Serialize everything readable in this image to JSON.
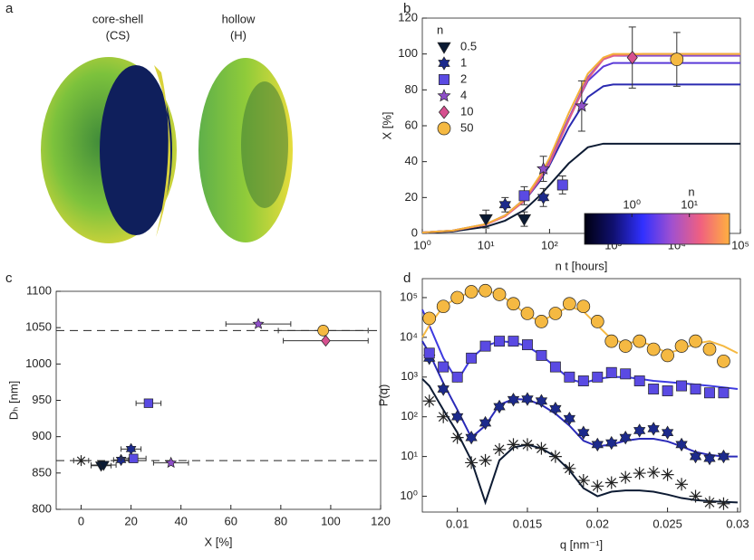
{
  "panel_a": {
    "label": "a",
    "images": [
      {
        "title": "core-shell",
        "abbr": "(CS)"
      },
      {
        "title": "hollow",
        "abbr": "(H)"
      }
    ]
  },
  "chart_data": [
    {
      "type": "scatter",
      "label": "b",
      "xlabel": "n t [hours]",
      "ylabel": "X [%]",
      "xscale": "log",
      "xlim": [
        1,
        100000
      ],
      "xticks": [
        {
          "value": 1,
          "label": "10⁰"
        },
        {
          "value": 10,
          "label": "10¹"
        },
        {
          "value": 100,
          "label": "10²"
        },
        {
          "value": 1000,
          "label": "10³"
        },
        {
          "value": 10000,
          "label": "10⁴"
        },
        {
          "value": 100000,
          "label": "10⁵"
        }
      ],
      "ylim": [
        0,
        120
      ],
      "yticks": [
        0,
        20,
        40,
        60,
        80,
        100,
        120
      ],
      "legend_title": "n",
      "legend_loc": "upper left",
      "curve_x": [
        1,
        3,
        10,
        20,
        40,
        70,
        100,
        200,
        400,
        700,
        1000,
        3000,
        10000,
        100000
      ],
      "series": [
        {
          "name": "0.5",
          "marker": "triangle-down",
          "color": "#0b1a33",
          "line_color": "#0d1b33",
          "x": [
            10,
            40
          ],
          "values": [
            8,
            8
          ],
          "errors": [
            5,
            4
          ],
          "curve": [
            0.4,
            1.1,
            3.7,
            7.1,
            13,
            21,
            27,
            39,
            48,
            50,
            50,
            50,
            50,
            50
          ]
        },
        {
          "name": "1",
          "marker": "hexagram",
          "color": "#1c2a8c",
          "line_color": "#2a2ab0",
          "x": [
            20,
            80
          ],
          "values": [
            16,
            20
          ],
          "errors": [
            4,
            5
          ],
          "curve": [
            0.5,
            1.5,
            5,
            10,
            18,
            29,
            38,
            59,
            76,
            82,
            83,
            83,
            83,
            83
          ]
        },
        {
          "name": "2",
          "marker": "square",
          "color": "#5a4ae3",
          "line_color": "#5a3ad8",
          "x": [
            40,
            160
          ],
          "values": [
            21,
            27
          ],
          "errors": [
            5,
            5
          ],
          "curve": [
            0.5,
            1.6,
            5.1,
            10,
            19,
            31,
            41,
            64,
            85,
            93,
            95,
            95,
            95,
            95
          ]
        },
        {
          "name": "4",
          "marker": "star",
          "color": "#8e4fc8",
          "line_color": "#8a4fc8",
          "x": [
            80,
            320
          ],
          "values": [
            36,
            71
          ],
          "errors": [
            7,
            14
          ],
          "curve": [
            0.5,
            1.6,
            5.1,
            10,
            19,
            31,
            40,
            64,
            87,
            97,
            99,
            99,
            99,
            99
          ]
        },
        {
          "name": "10",
          "marker": "diamond",
          "color": "#d6508f",
          "line_color": "#e05f8a",
          "x": [
            2000
          ],
          "values": [
            98
          ],
          "errors": [
            17
          ],
          "curve": [
            0.5,
            1.5,
            4.9,
            9.5,
            18,
            30,
            39,
            63,
            86,
            97,
            99,
            100,
            100,
            100
          ]
        },
        {
          "name": "50",
          "marker": "circle",
          "color": "#f5b942",
          "line_color": "#f5b038",
          "x": [
            10000
          ],
          "values": [
            97
          ],
          "errors": [
            15
          ],
          "curve": [
            0.5,
            1.6,
            5.2,
            10,
            19,
            32,
            42,
            67,
            89,
            98,
            100,
            100,
            100,
            100
          ]
        }
      ],
      "colorbar": {
        "title": "n",
        "lim": [
          0.15,
          50
        ],
        "ticks": [
          {
            "value": 1,
            "label": "10⁰"
          },
          {
            "value": 10,
            "label": "10¹"
          }
        ],
        "colors": [
          "#000010",
          "#101070",
          "#3030ff",
          "#a050d0",
          "#f06080",
          "#ffb040"
        ]
      }
    },
    {
      "type": "scatter",
      "label": "c",
      "xlabel": "X [%]",
      "ylabel": "Dₕ [nm]",
      "xlim": [
        -10,
        120
      ],
      "xticks": [
        0,
        20,
        40,
        60,
        80,
        100,
        120
      ],
      "ylim": [
        800,
        1100
      ],
      "yticks": [
        800,
        850,
        900,
        950,
        1000,
        1050,
        1100
      ],
      "hlines": [
        867,
        1046
      ],
      "series": [
        {
          "marker": "asterisk",
          "color": "#222222",
          "x": [
            0
          ],
          "values": [
            867
          ],
          "x_errors": [
            3
          ]
        },
        {
          "marker": "triangle-down",
          "color": "#0b1a33",
          "x": [
            8,
            9
          ],
          "values": [
            860,
            861
          ],
          "x_errors": [
            4,
            5
          ]
        },
        {
          "marker": "hexagram",
          "color": "#1c2a8c",
          "x": [
            16,
            20
          ],
          "values": [
            868,
            883
          ],
          "x_errors": [
            3,
            4
          ]
        },
        {
          "marker": "square",
          "color": "#5a4ae3",
          "x": [
            21,
            27
          ],
          "values": [
            870,
            946
          ],
          "x_errors": [
            5,
            5
          ]
        },
        {
          "marker": "star",
          "color": "#8e4fc8",
          "x": [
            36,
            71
          ],
          "values": [
            864,
            1055
          ],
          "x_errors": [
            7,
            13
          ]
        },
        {
          "marker": "diamond",
          "color": "#d6508f",
          "x": [
            98
          ],
          "values": [
            1032
          ],
          "x_errors": [
            17
          ]
        },
        {
          "marker": "circle",
          "color": "#f5b942",
          "x": [
            97
          ],
          "values": [
            1046
          ],
          "x_errors": [
            18
          ]
        }
      ]
    },
    {
      "type": "scatter",
      "label": "d",
      "xlabel": "q [nm⁻¹]",
      "ylabel": "P(q)",
      "yscale": "log",
      "xlim": [
        0.0075,
        0.0302
      ],
      "xticks": [
        0.01,
        0.015,
        0.02,
        0.025,
        0.03
      ],
      "ylim": [
        0.4,
        300000
      ],
      "yticks": [
        {
          "value": 1,
          "label": "10⁰"
        },
        {
          "value": 10,
          "label": "10¹"
        },
        {
          "value": 100,
          "label": "10²"
        },
        {
          "value": 1000,
          "label": "10³"
        },
        {
          "value": 10000,
          "label": "10⁴"
        },
        {
          "value": 100000,
          "label": "10⁵"
        }
      ],
      "x": [
        0.008,
        0.009,
        0.01,
        0.011,
        0.012,
        0.013,
        0.014,
        0.015,
        0.016,
        0.017,
        0.018,
        0.019,
        0.02,
        0.021,
        0.022,
        0.023,
        0.024,
        0.025,
        0.026,
        0.027,
        0.028,
        0.029
      ],
      "curve_x": [
        0.0075,
        0.008,
        0.009,
        0.01,
        0.011,
        0.012,
        0.013,
        0.014,
        0.015,
        0.016,
        0.017,
        0.018,
        0.019,
        0.02,
        0.021,
        0.022,
        0.023,
        0.024,
        0.025,
        0.026,
        0.027,
        0.028,
        0.029,
        0.03
      ],
      "series": [
        {
          "marker": "asterisk",
          "color": "#222222",
          "line_color": "#0d1b33",
          "values": [
            250,
            100,
            30,
            7,
            8,
            15,
            20,
            20,
            16,
            10,
            5,
            2.5,
            1.8,
            2.2,
            3,
            3.8,
            4,
            3.5,
            2,
            1,
            0.7,
            0.65
          ],
          "curve": [
            900,
            600,
            150,
            40,
            8,
            0.7,
            8,
            17,
            20,
            16,
            10,
            4.5,
            1.6,
            1,
            1.3,
            1.4,
            1.4,
            1.3,
            1.1,
            0.9,
            0.8,
            0.75,
            0.72,
            0.7
          ]
        },
        {
          "marker": "hexagram",
          "color": "#1c2a8c",
          "line_color": "#2a2ab8",
          "values": [
            3000,
            500,
            100,
            30,
            70,
            180,
            270,
            280,
            250,
            160,
            90,
            40,
            20,
            22,
            30,
            45,
            50,
            40,
            20,
            10,
            9,
            10
          ],
          "curve": [
            8000,
            4000,
            700,
            150,
            30,
            60,
            200,
            280,
            270,
            200,
            120,
            60,
            25,
            18,
            20,
            25,
            28,
            28,
            24,
            18,
            13,
            11,
            10,
            10
          ]
        },
        {
          "marker": "square",
          "color": "#5a4ae3",
          "line_color": "#3d3ae0",
          "values": [
            4000,
            1800,
            1000,
            3000,
            6000,
            8000,
            8000,
            6500,
            3500,
            1800,
            1000,
            800,
            1000,
            1300,
            1200,
            800,
            500,
            450,
            600,
            500,
            400,
            400
          ],
          "curve": [
            50000,
            20000,
            3000,
            800,
            3000,
            6000,
            8000,
            7500,
            6000,
            3500,
            1800,
            900,
            700,
            900,
            1000,
            1000,
            900,
            800,
            750,
            700,
            650,
            600,
            550,
            500
          ]
        },
        {
          "marker": "circle",
          "color": "#f5b942",
          "line_color": "#f5b942",
          "values": [
            30000,
            60000,
            100000,
            140000,
            150000,
            120000,
            70000,
            40000,
            25000,
            40000,
            70000,
            60000,
            25000,
            8000,
            6000,
            8000,
            5000,
            3500,
            6000,
            8000,
            5000,
            2500
          ],
          "curve": [
            10000,
            20000,
            60000,
            100000,
            140000,
            150000,
            120000,
            70000,
            35000,
            25000,
            40000,
            60000,
            45000,
            20000,
            9000,
            7000,
            8000,
            6000,
            4000,
            5000,
            7000,
            8000,
            6000,
            4000
          ]
        }
      ]
    }
  ]
}
